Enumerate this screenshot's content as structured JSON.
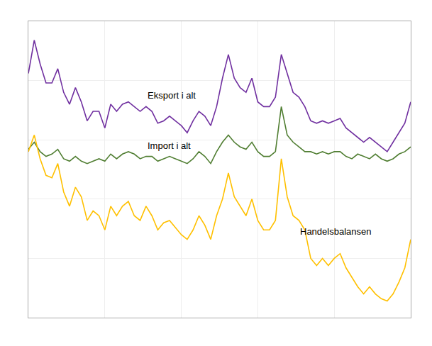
{
  "chart_data": {
    "type": "line",
    "x": [
      0,
      1,
      2,
      3,
      4,
      5,
      6,
      7,
      8,
      9,
      10,
      11,
      12,
      13,
      14,
      15,
      16,
      17,
      18,
      19,
      20,
      21,
      22,
      23,
      24,
      25,
      26,
      27,
      28,
      29,
      30,
      31,
      32,
      33,
      34,
      35,
      36,
      37,
      38,
      39,
      40,
      41,
      42,
      43,
      44,
      45,
      46,
      47,
      48,
      49,
      50,
      51,
      52,
      53,
      54,
      55,
      56,
      57,
      58,
      59,
      60,
      61,
      62,
      63,
      64,
      65
    ],
    "series": [
      {
        "color": "#7030A0",
        "values": [
          88,
          102,
          92,
          84,
          84,
          90,
          80,
          75,
          82,
          76,
          68,
          72,
          72,
          65,
          75,
          72,
          75,
          76,
          74,
          72,
          74,
          72,
          67,
          68,
          70,
          68,
          66,
          63,
          68,
          72,
          70,
          66,
          74,
          86,
          96,
          86,
          82,
          80,
          86,
          76,
          74,
          74,
          78,
          96,
          88,
          80,
          78,
          74,
          68,
          67,
          68,
          67,
          68,
          69,
          65,
          63,
          61,
          59,
          61,
          59,
          57,
          55,
          59,
          63,
          67,
          76
        ]
      },
      {
        "color": "#507E32",
        "values": [
          56,
          59,
          55,
          53,
          54,
          56,
          52,
          51,
          53,
          51,
          50,
          51,
          52,
          51,
          54,
          52,
          54,
          55,
          54,
          52,
          53,
          53,
          51,
          52,
          53,
          52,
          51,
          50,
          52,
          55,
          53,
          50,
          55,
          59,
          62,
          59,
          57,
          56,
          59,
          55,
          53,
          53,
          55,
          74,
          62,
          59,
          57,
          55,
          55,
          54,
          55,
          54,
          55,
          55,
          53,
          52,
          54,
          53,
          52,
          54,
          52,
          51,
          52,
          54,
          55,
          57
        ]
      },
      {
        "color": "#FFC000",
        "values": [
          55,
          62,
          52,
          45,
          44,
          50,
          38,
          32,
          40,
          36,
          26,
          30,
          28,
          22,
          32,
          28,
          32,
          34,
          28,
          26,
          32,
          28,
          22,
          25,
          26,
          23,
          20,
          18,
          22,
          28,
          24,
          18,
          28,
          35,
          46,
          36,
          32,
          28,
          35,
          26,
          22,
          22,
          26,
          52,
          36,
          28,
          26,
          22,
          10,
          7,
          10,
          7,
          10,
          12,
          6,
          2,
          -2,
          -5,
          -2,
          -5,
          -7,
          -8,
          -5,
          0,
          6,
          18
        ]
      }
    ],
    "annotations": [
      "Eksport i alt",
      "Import i alt",
      "Handelsbalansen"
    ],
    "xlim": [
      0,
      65
    ],
    "xticks": [
      0,
      13,
      26,
      39,
      52,
      65
    ],
    "ylim": [
      -15,
      110
    ],
    "yticks": [
      -15,
      10,
      35,
      60,
      85,
      110
    ],
    "grid": true,
    "tick_labels": false
  }
}
